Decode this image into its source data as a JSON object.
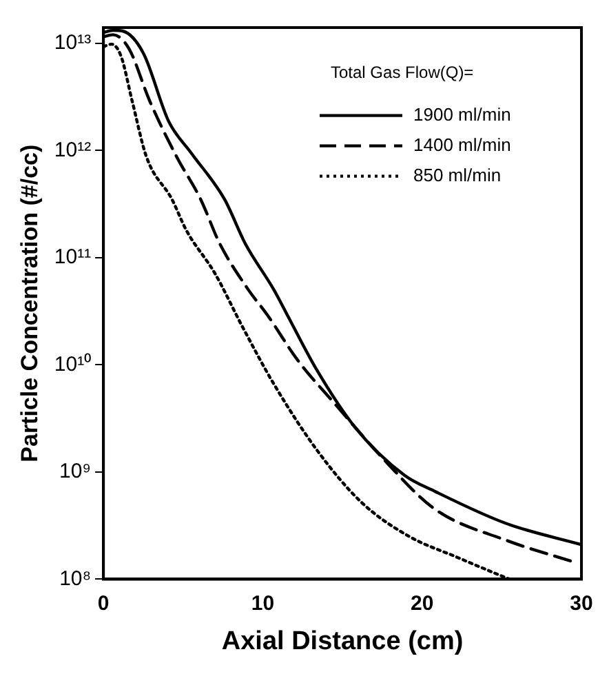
{
  "chart_data": {
    "type": "line",
    "xlabel": "Axial Distance (cm)",
    "ylabel": "Particle Concentration (#/cc)",
    "legend_title": "Total Gas Flow(Q)=",
    "log": "y",
    "grid": false,
    "legend": "top right",
    "marker": "none",
    "xlim": [
      0,
      30
    ],
    "xticks": [
      0,
      10,
      20,
      30
    ],
    "ylim": [
      100000000.0,
      14000000000000.0
    ],
    "yticks": [
      {
        "value": 100000000.0,
        "label": "10⁸"
      },
      {
        "value": 1000000000.0,
        "label": "10⁹"
      },
      {
        "value": 10000000000.0,
        "label": "10¹⁰"
      },
      {
        "value": 100000000000.0,
        "label": "10¹¹"
      },
      {
        "value": 1000000000000.0,
        "label": "10¹²"
      },
      {
        "value": 10000000000000.0,
        "label": "10¹³"
      }
    ],
    "series": [
      {
        "name": "1900 ml/min",
        "color": "#000000",
        "line_style": "solid",
        "x": [
          0,
          0.6,
          1.2,
          2.5,
          4.1,
          5.5,
          7.6,
          8.9,
          10.7,
          11.6,
          13.4,
          15.8,
          18.9,
          20.8,
          25.3,
          30
        ],
        "values": [
          12600000000000.0,
          13200000000000.0,
          13000000000000.0,
          8100000000000.0,
          1860000000000.0,
          950000000000.0,
          350000000000.0,
          135000000000.0,
          50000000000.0,
          28000000000.0,
          8900000000.0,
          2600000000.0,
          930000000.0,
          660000000.0,
          330000000.0,
          210000000.0
        ]
      },
      {
        "name": "1400 ml/min",
        "color": "#000000",
        "line_style": "dashed",
        "x": [
          0,
          0.6,
          1.6,
          2.9,
          4.6,
          6.1,
          7.3,
          9.1,
          10.3,
          12.2,
          14.6,
          17.7,
          20.8,
          25.3,
          29.5
        ],
        "values": [
          11500000000000.0,
          12000000000000.0,
          8900000000000.0,
          2900000000000.0,
          870000000000.0,
          350000000000.0,
          135000000000.0,
          50000000000.0,
          29000000000.0,
          11000000000.0,
          4200000000.0,
          1260000000.0,
          450000000.0,
          230000000.0,
          145000000.0
        ]
      },
      {
        "name": "850 ml/min",
        "color": "#000000",
        "line_style": "dotted",
        "x": [
          0,
          0.5,
          1.1,
          1.8,
          2.7,
          4.3,
          5.2,
          7.0,
          8.7,
          10.7,
          13.4,
          16.2,
          19.2,
          22.2,
          25,
          25.5
        ],
        "values": [
          9300000000000.0,
          9800000000000.0,
          7600000000000.0,
          2900000000000.0,
          870000000000.0,
          350000000000.0,
          180000000000.0,
          71000000000.0,
          23000000000.0,
          6600000000.0,
          1600000000.0,
          520000000.0,
          250000000.0,
          160000000.0,
          107000000.0,
          100000000.0
        ]
      }
    ]
  }
}
